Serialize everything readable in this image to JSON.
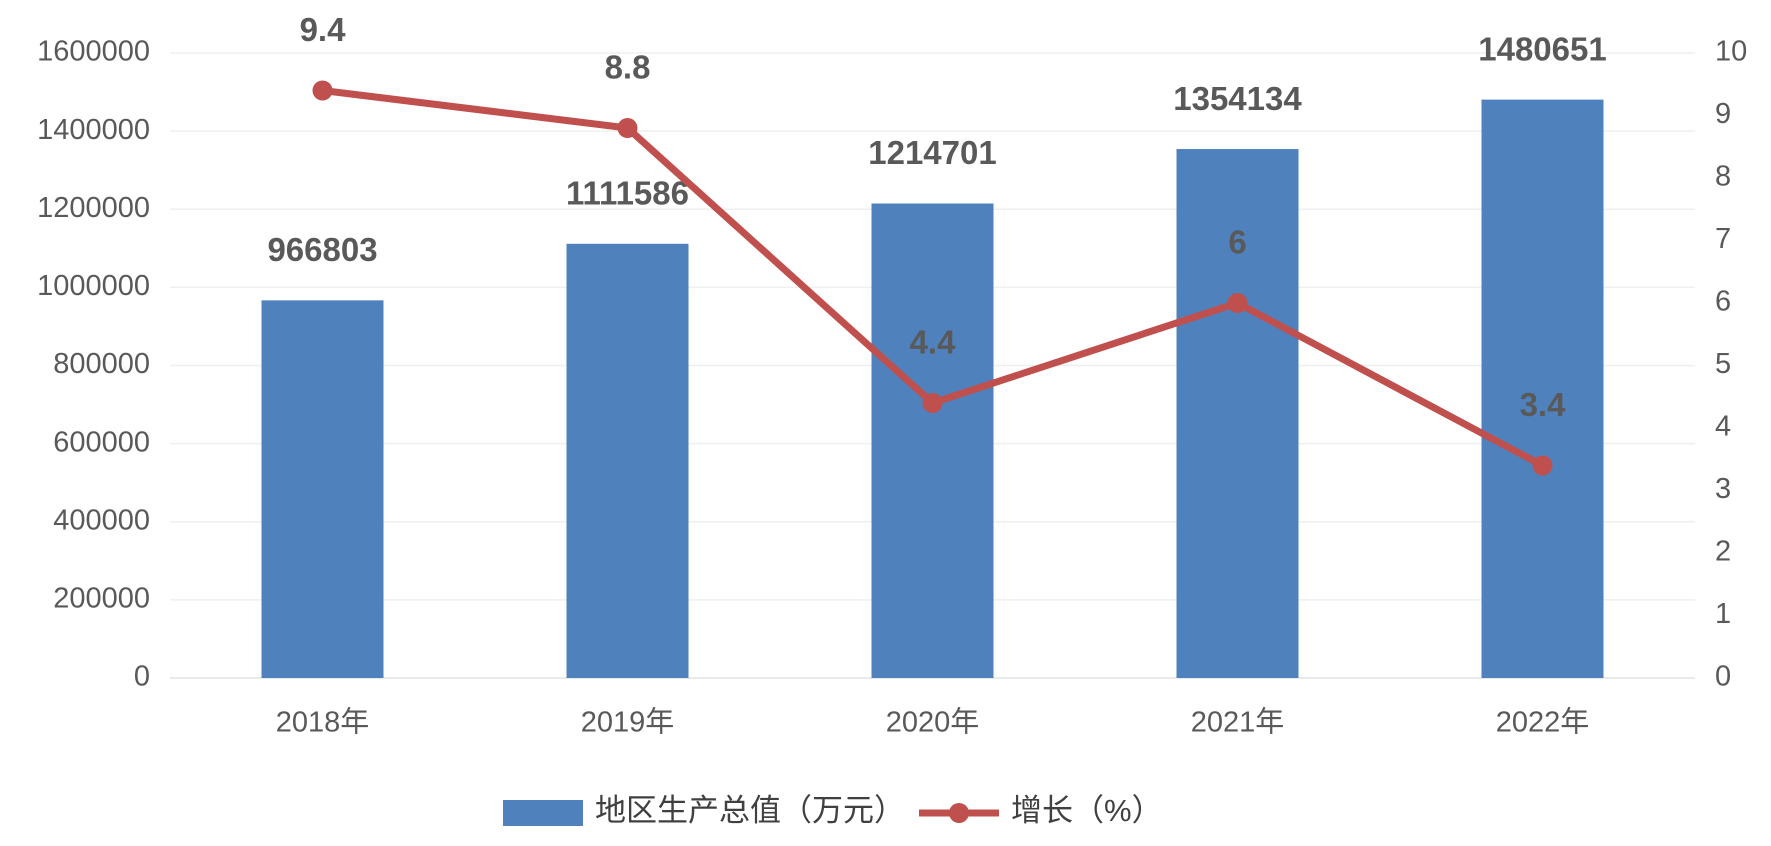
{
  "chart_data": {
    "type": "bar",
    "categories": [
      "2018年",
      "2019年",
      "2020年",
      "2021年",
      "2022年"
    ],
    "series": [
      {
        "name": "地区生产总值（万元）",
        "type": "bar",
        "color": "#4f81bd",
        "values": [
          966803,
          1111586,
          1214701,
          1354134,
          1480651
        ]
      },
      {
        "name": "增长（%）",
        "type": "line",
        "axis": "y2",
        "color": "#c0504d",
        "values": [
          9.4,
          8.8,
          4.4,
          6,
          3.4
        ]
      }
    ],
    "ylim": [
      0,
      1600000
    ],
    "yticks": [
      0,
      200000,
      400000,
      600000,
      800000,
      1000000,
      1200000,
      1400000,
      1600000
    ],
    "y2lim": [
      0,
      10
    ],
    "y2ticks": [
      0,
      1,
      2,
      3,
      4,
      5,
      6,
      7,
      8,
      9,
      10
    ],
    "grid": true,
    "legend": "bottom"
  }
}
